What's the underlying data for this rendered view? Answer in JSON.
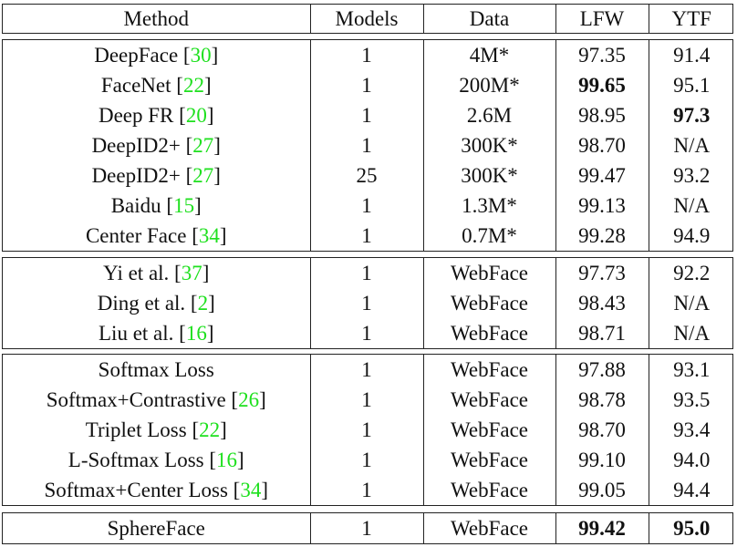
{
  "header": [
    "Method",
    "Models",
    "Data",
    "LFW",
    "YTF"
  ],
  "groups": [
    [
      {
        "method": "DeepFace",
        "cite": "30",
        "models": "1",
        "data": "4M*",
        "lfw": "97.35",
        "ytf": "91.4"
      },
      {
        "method": "FaceNet",
        "cite": "22",
        "models": "1",
        "data": "200M*",
        "lfw": "99.65",
        "ytf": "95.1",
        "bold": [
          "lfw"
        ]
      },
      {
        "method": "Deep FR",
        "cite": "20",
        "models": "1",
        "data": "2.6M",
        "lfw": "98.95",
        "ytf": "97.3",
        "bold": [
          "ytf"
        ]
      },
      {
        "method": "DeepID2+",
        "cite": "27",
        "models": "1",
        "data": "300K*",
        "lfw": "98.70",
        "ytf": "N/A"
      },
      {
        "method": "DeepID2+",
        "cite": "27",
        "models": "25",
        "data": "300K*",
        "lfw": "99.47",
        "ytf": "93.2"
      },
      {
        "method": "Baidu",
        "cite": "15",
        "models": "1",
        "data": "1.3M*",
        "lfw": "99.13",
        "ytf": "N/A"
      },
      {
        "method": "Center Face",
        "cite": "34",
        "models": "1",
        "data": "0.7M*",
        "lfw": "99.28",
        "ytf": "94.9"
      }
    ],
    [
      {
        "method": "Yi et al.",
        "cite": "37",
        "models": "1",
        "data": "WebFace",
        "lfw": "97.73",
        "ytf": "92.2"
      },
      {
        "method": "Ding et al.",
        "cite": "2",
        "models": "1",
        "data": "WebFace",
        "lfw": "98.43",
        "ytf": "N/A"
      },
      {
        "method": "Liu et al.",
        "cite": "16",
        "models": "1",
        "data": "WebFace",
        "lfw": "98.71",
        "ytf": "N/A"
      }
    ],
    [
      {
        "method": "Softmax Loss",
        "cite": "",
        "models": "1",
        "data": "WebFace",
        "lfw": "97.88",
        "ytf": "93.1"
      },
      {
        "method": "Softmax+Contrastive",
        "cite": "26",
        "models": "1",
        "data": "WebFace",
        "lfw": "98.78",
        "ytf": "93.5"
      },
      {
        "method": "Triplet Loss",
        "cite": "22",
        "models": "1",
        "data": "WebFace",
        "lfw": "98.70",
        "ytf": "93.4"
      },
      {
        "method": "L-Softmax Loss",
        "cite": "16",
        "models": "1",
        "data": "WebFace",
        "lfw": "99.10",
        "ytf": "94.0"
      },
      {
        "method": "Softmax+Center Loss",
        "cite": "34",
        "models": "1",
        "data": "WebFace",
        "lfw": "99.05",
        "ytf": "94.4"
      }
    ],
    [
      {
        "method": "SphereFace",
        "cite": "",
        "models": "1",
        "data": "WebFace",
        "lfw": "99.42",
        "ytf": "95.0",
        "bold": [
          "lfw",
          "ytf"
        ]
      }
    ]
  ],
  "colors": {
    "citation": "#1ee01e",
    "rule": "#222222"
  }
}
